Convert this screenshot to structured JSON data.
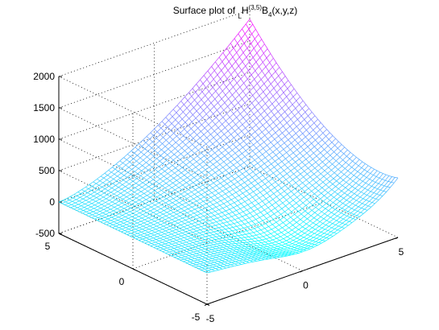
{
  "chart_data": {
    "type": "surface",
    "title": {
      "prefix": "Surface plot of ",
      "sub_before": "L",
      "main": "H",
      "sup": "(3,5)",
      "mid": "B",
      "sub_after": "4",
      "suffix": "(x,y,z)"
    },
    "xlim": [
      -5,
      5
    ],
    "ylim": [
      -5,
      5
    ],
    "zlim": [
      -500,
      2000
    ],
    "x_ticks": [
      "-5",
      "0",
      "5"
    ],
    "y_ticks": [
      "-5",
      "0",
      "5"
    ],
    "z_ticks": [
      "-500",
      "0",
      "500",
      "1000",
      "1500",
      "2000"
    ],
    "grid": true,
    "colormap": "cool",
    "corner_values": {
      "x-5_y5": 0,
      "x5_y5": 1850,
      "x5_y-5": 0,
      "x-5_y-5": 0
    },
    "ridge_peak": 450
  }
}
